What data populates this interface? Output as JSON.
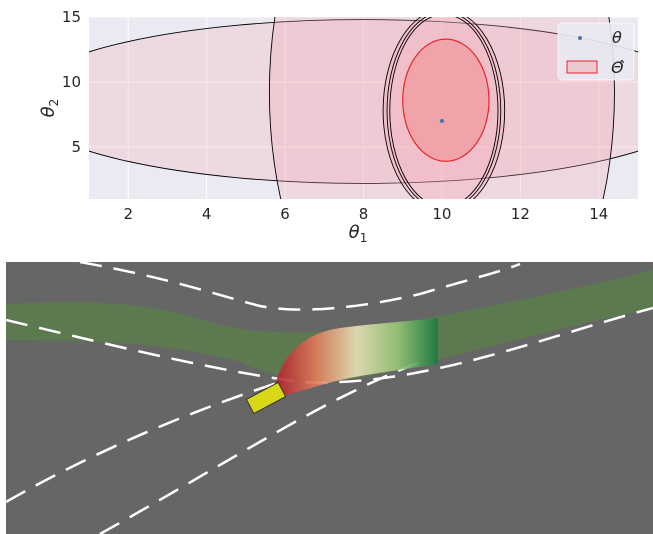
{
  "chart_data": {
    "type": "scatter",
    "title": "",
    "xlabel": "θ",
    "xlabel_sub": "1",
    "ylabel": "θ",
    "ylabel_sub": "2",
    "xlim": [
      1,
      15
    ],
    "ylim": [
      1,
      15
    ],
    "xticks": [
      2,
      4,
      6,
      8,
      10,
      12,
      14
    ],
    "yticks": [
      5,
      10,
      15
    ],
    "grid": true,
    "legend_position": "top-right",
    "series": [
      {
        "name": "θ",
        "type": "point",
        "x": [
          10.0
        ],
        "y": [
          7.0
        ],
        "color": "#4c72b0"
      },
      {
        "name": "Θ̂",
        "type": "ellipse",
        "color": "#e8262c",
        "fill": "#f08080"
      }
    ],
    "ellipses": [
      {
        "cx": 8.0,
        "cy": 8.5,
        "rx": 8.8,
        "ry": 6.3,
        "color": "#000000",
        "fill": "#f4a6b4",
        "opacity": 0.25
      },
      {
        "cx": 10.0,
        "cy": 9.2,
        "rx": 4.4,
        "ry": 23.0,
        "color": "#000000",
        "fill": "#f4a6b4",
        "opacity": 0.28
      },
      {
        "cx": 10.05,
        "cy": 7.8,
        "rx": 1.55,
        "ry": 7.8,
        "color": "#000000",
        "fill": "#f4a6b4",
        "opacity": 0.3
      },
      {
        "cx": 10.05,
        "cy": 7.8,
        "rx": 1.45,
        "ry": 7.6,
        "color": "#000000",
        "fill": "none",
        "opacity": 0
      },
      {
        "cx": 10.05,
        "cy": 7.8,
        "rx": 1.38,
        "ry": 7.4,
        "color": "#000000",
        "fill": "none",
        "opacity": 0
      },
      {
        "cx": 10.1,
        "cy": 8.6,
        "rx": 1.1,
        "ry": 4.7,
        "color": "#e8262c",
        "fill": "#f08080",
        "opacity": 0.45
      }
    ]
  },
  "scene": {
    "background_color": "#666666",
    "path_color": "#5c7a4e",
    "vehicle_color": "#d8d818",
    "lane_marking_color": "#ffffff"
  }
}
